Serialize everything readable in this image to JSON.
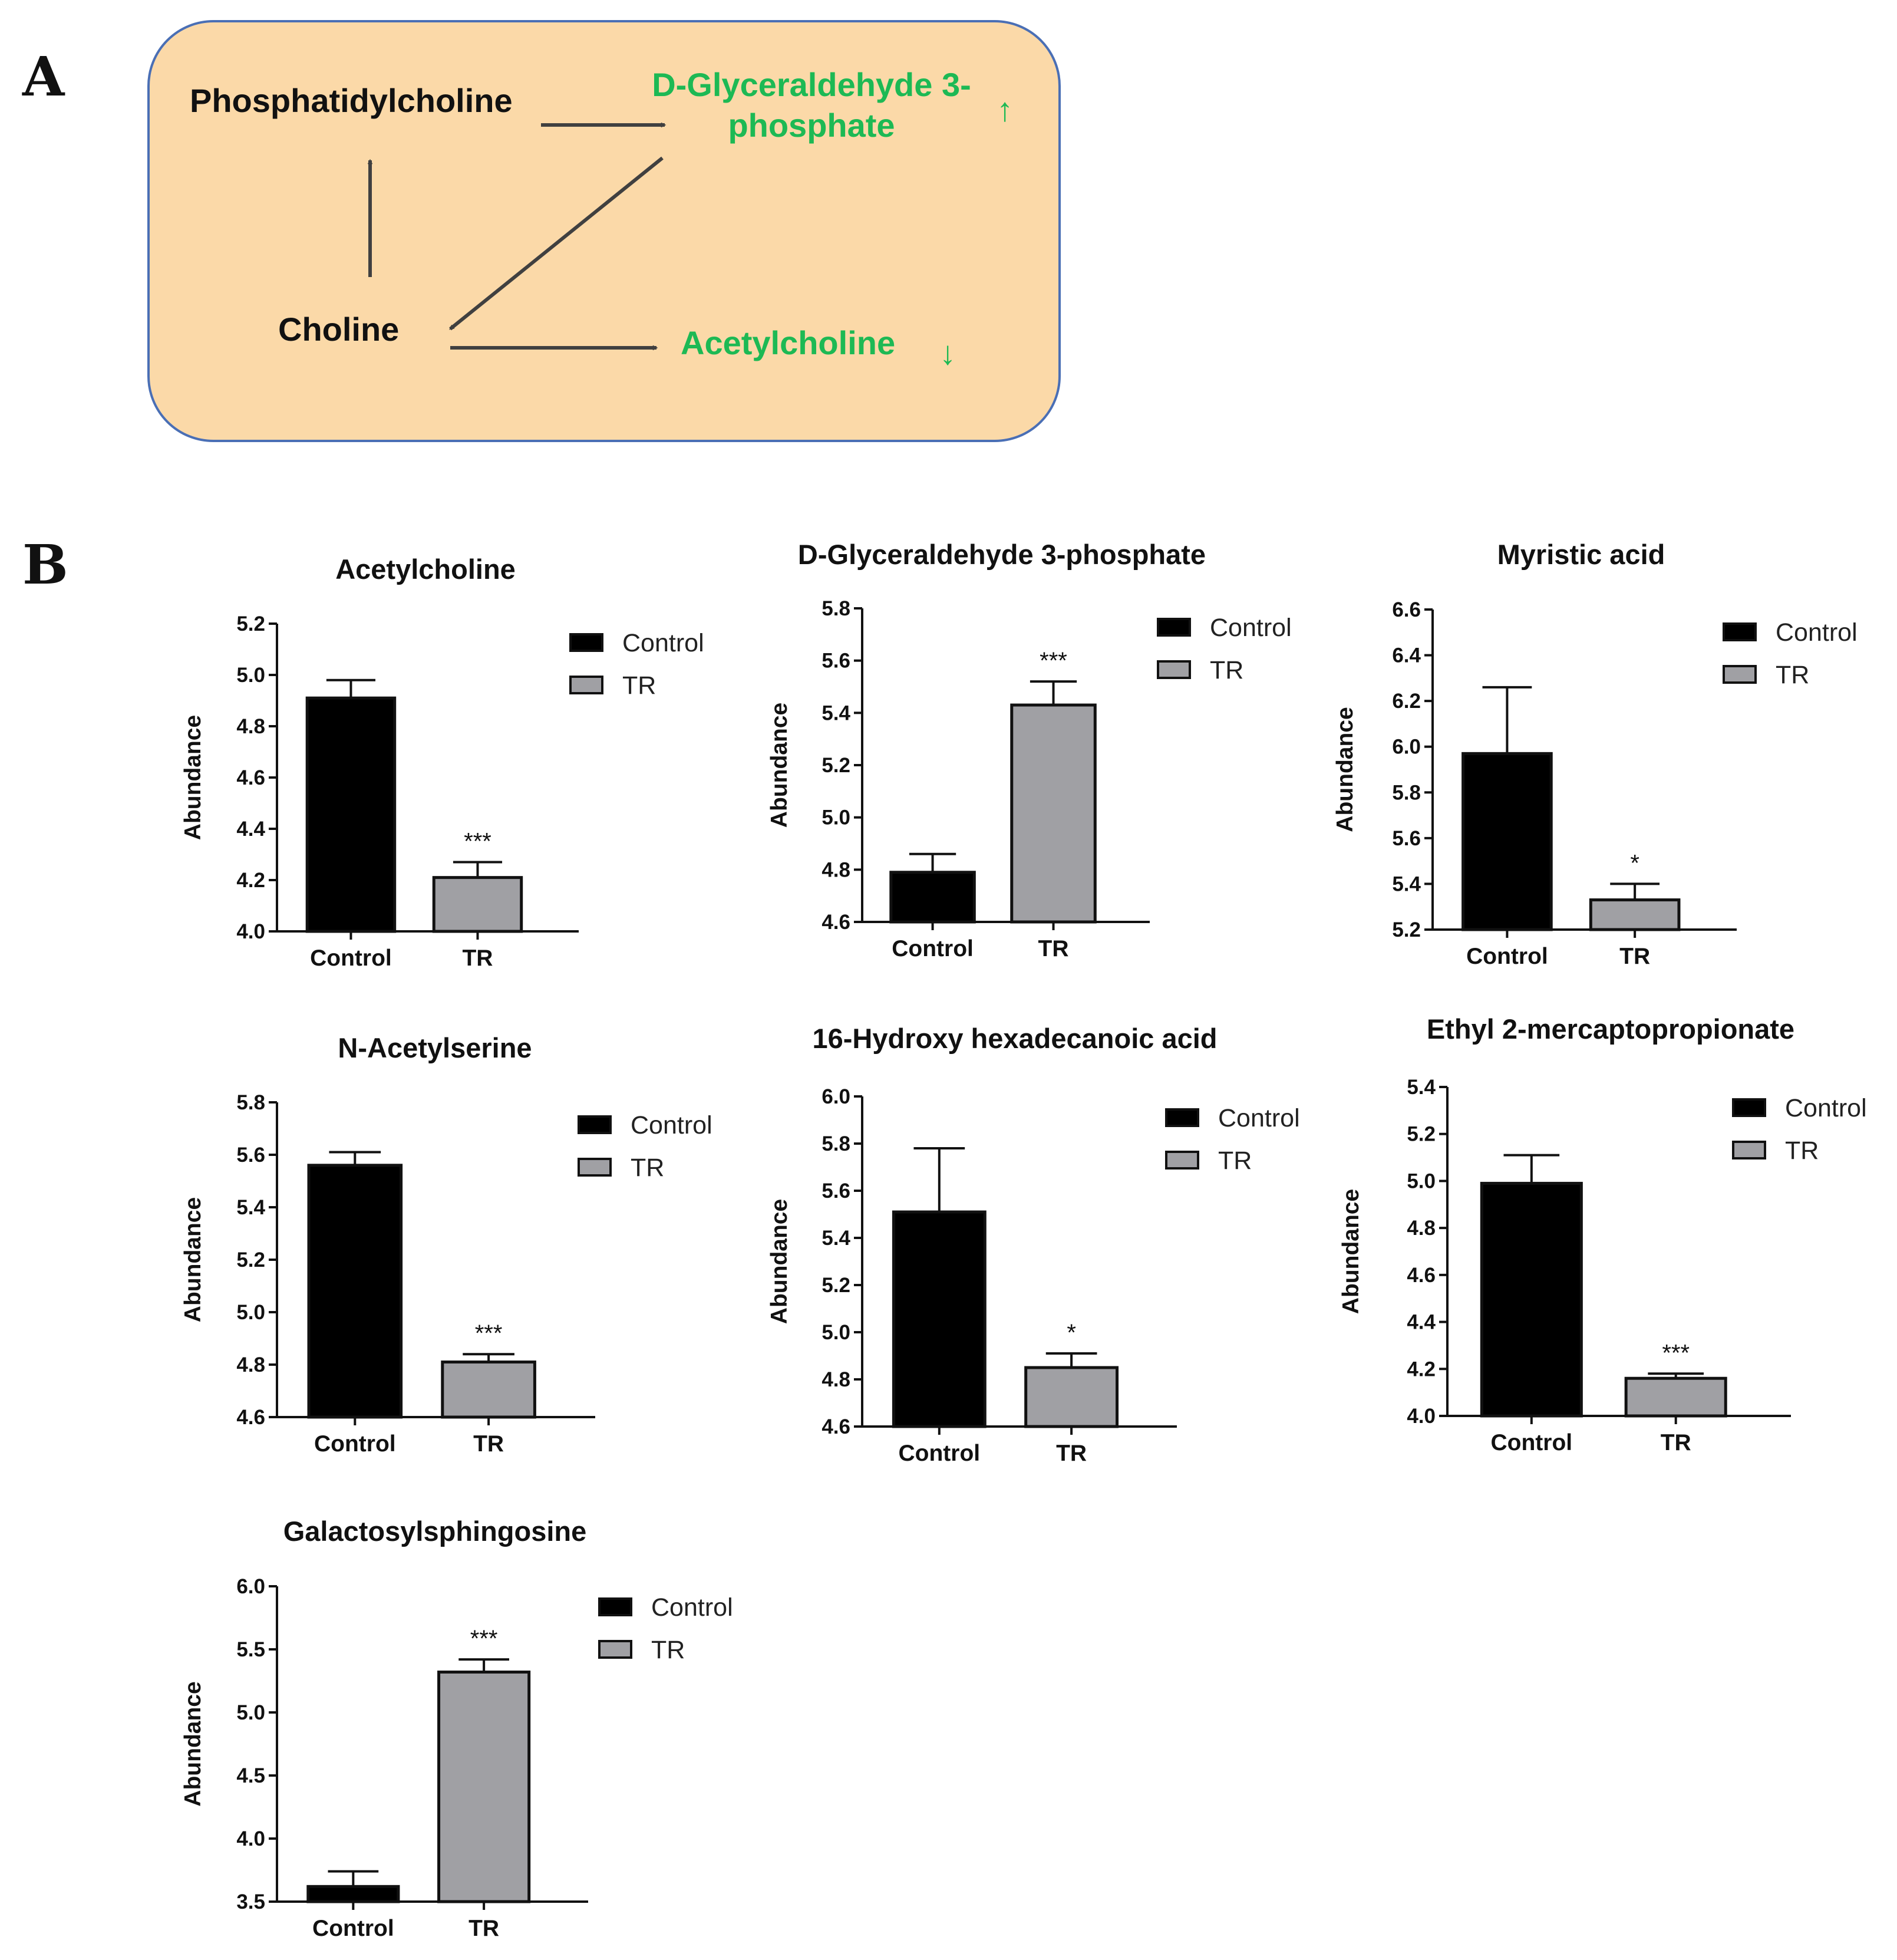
{
  "panel_a": {
    "letter": "A",
    "nodes": {
      "phosphatidylcholine": "Phosphatidylcholine",
      "g3p_line1": "D-Glyceraldehyde 3-",
      "g3p_line2": "phosphate",
      "choline": "Choline",
      "acetylcholine": "Acetylcholine"
    },
    "up_arrow": "↑",
    "down_arrow": "↓"
  },
  "panel_b": {
    "letter": "B"
  },
  "colors": {
    "box_fill": "#fbd9a8",
    "box_stroke": "#4a6fb5",
    "green": "#1db954",
    "arrow": "#404040",
    "control": "#000000",
    "tr": "#a0a0a4"
  },
  "chart_data": [
    {
      "type": "bar",
      "title": "Acetylcholine",
      "categories": [
        "Control",
        "TR"
      ],
      "values": [
        4.91,
        4.21
      ],
      "errors": [
        0.07,
        0.06
      ],
      "significance": [
        "",
        "***"
      ],
      "ylabel": "Abundance",
      "ylim": [
        4.0,
        5.2
      ],
      "yticks": [
        "4.0",
        "4.2",
        "4.4",
        "4.6",
        "4.8",
        "5.0",
        "5.2"
      ],
      "legend": [
        "Control",
        "TR"
      ]
    },
    {
      "type": "bar",
      "title": "D-Glyceraldehyde 3-phosphate",
      "categories": [
        "Control",
        "TR"
      ],
      "values": [
        4.79,
        5.43
      ],
      "errors": [
        0.07,
        0.09
      ],
      "significance": [
        "",
        "***"
      ],
      "ylabel": "Abundance",
      "ylim": [
        4.6,
        5.8
      ],
      "yticks": [
        "4.6",
        "4.8",
        "5.0",
        "5.2",
        "5.4",
        "5.6",
        "5.8"
      ],
      "legend": [
        "Control",
        "TR"
      ]
    },
    {
      "type": "bar",
      "title": "Myristic acid",
      "categories": [
        "Control",
        "TR"
      ],
      "values": [
        5.97,
        5.33
      ],
      "errors": [
        0.29,
        0.07
      ],
      "significance": [
        "",
        "*"
      ],
      "ylabel": "Abundance",
      "ylim": [
        5.2,
        6.6
      ],
      "yticks": [
        "5.2",
        "5.4",
        "5.6",
        "5.8",
        "6.0",
        "6.2",
        "6.4",
        "6.6"
      ],
      "legend": [
        "Control",
        "TR"
      ]
    },
    {
      "type": "bar",
      "title": "N-Acetylserine",
      "categories": [
        "Control",
        "TR"
      ],
      "values": [
        5.56,
        4.81
      ],
      "errors": [
        0.05,
        0.03
      ],
      "significance": [
        "",
        "***"
      ],
      "ylabel": "Abundance",
      "ylim": [
        4.6,
        5.8
      ],
      "yticks": [
        "4.6",
        "4.8",
        "5.0",
        "5.2",
        "5.4",
        "5.6",
        "5.8"
      ],
      "legend": [
        "Control",
        "TR"
      ]
    },
    {
      "type": "bar",
      "title": "16-Hydroxy hexadecanoic acid",
      "categories": [
        "Control",
        "TR"
      ],
      "values": [
        5.51,
        4.85
      ],
      "errors": [
        0.27,
        0.06
      ],
      "significance": [
        "",
        "*"
      ],
      "ylabel": "Abundance",
      "ylim": [
        4.6,
        6.0
      ],
      "yticks": [
        "4.6",
        "4.8",
        "5.0",
        "5.2",
        "5.4",
        "5.6",
        "5.8",
        "6.0"
      ],
      "legend": [
        "Control",
        "TR"
      ]
    },
    {
      "type": "bar",
      "title": "Ethyl 2-mercaptopropionate",
      "categories": [
        "Control",
        "TR"
      ],
      "values": [
        4.99,
        4.16
      ],
      "errors": [
        0.12,
        0.02
      ],
      "significance": [
        "",
        "***"
      ],
      "ylabel": "Abundance",
      "ylim": [
        4.0,
        5.4
      ],
      "yticks": [
        "4.0",
        "4.2",
        "4.4",
        "4.6",
        "4.8",
        "5.0",
        "5.2",
        "5.4"
      ],
      "legend": [
        "Control",
        "TR"
      ]
    },
    {
      "type": "bar",
      "title": "Galactosylsphingosine",
      "categories": [
        "Control",
        "TR"
      ],
      "values": [
        3.62,
        5.32
      ],
      "errors": [
        0.12,
        0.1
      ],
      "significance": [
        "",
        "***"
      ],
      "ylabel": "Abundance",
      "ylim": [
        3.5,
        6.0
      ],
      "yticks": [
        "3.5",
        "4.0",
        "4.5",
        "5.0",
        "5.5",
        "6.0"
      ],
      "legend": [
        "Control",
        "TR"
      ]
    }
  ]
}
